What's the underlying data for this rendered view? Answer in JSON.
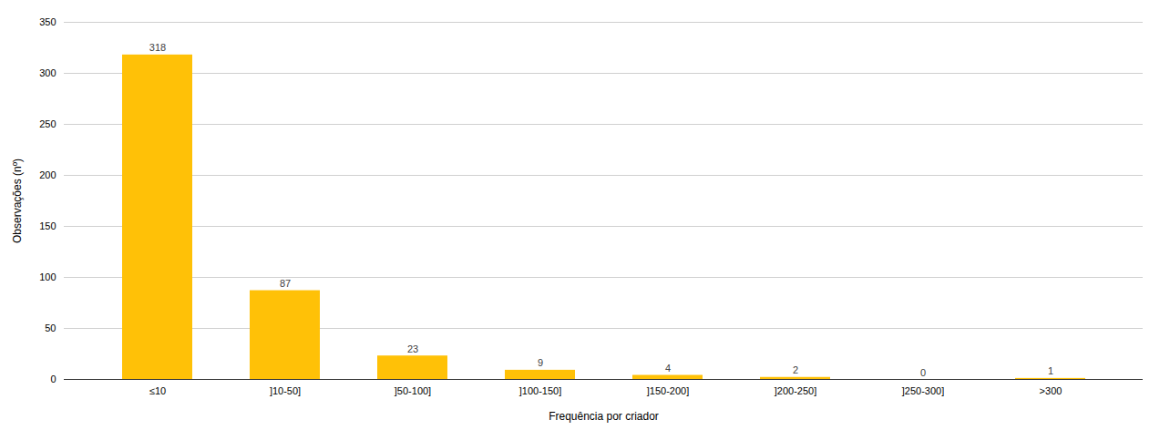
{
  "chart_data": {
    "type": "bar",
    "categories": [
      "≤10",
      "]10-50]",
      "]50-100]",
      "]100-150]",
      "]150-200]",
      "]200-250]",
      "]250-300]",
      ">300"
    ],
    "values": [
      318,
      87,
      23,
      9,
      4,
      2,
      0,
      1
    ],
    "color": "#FFC107",
    "xlabel": "Frequência por criador",
    "ylabel": "Observações (nº)",
    "ylim": [
      0,
      350
    ],
    "yticks": [
      0,
      50,
      100,
      150,
      200,
      250,
      300,
      350
    ],
    "grid": true,
    "data_labels": true
  }
}
